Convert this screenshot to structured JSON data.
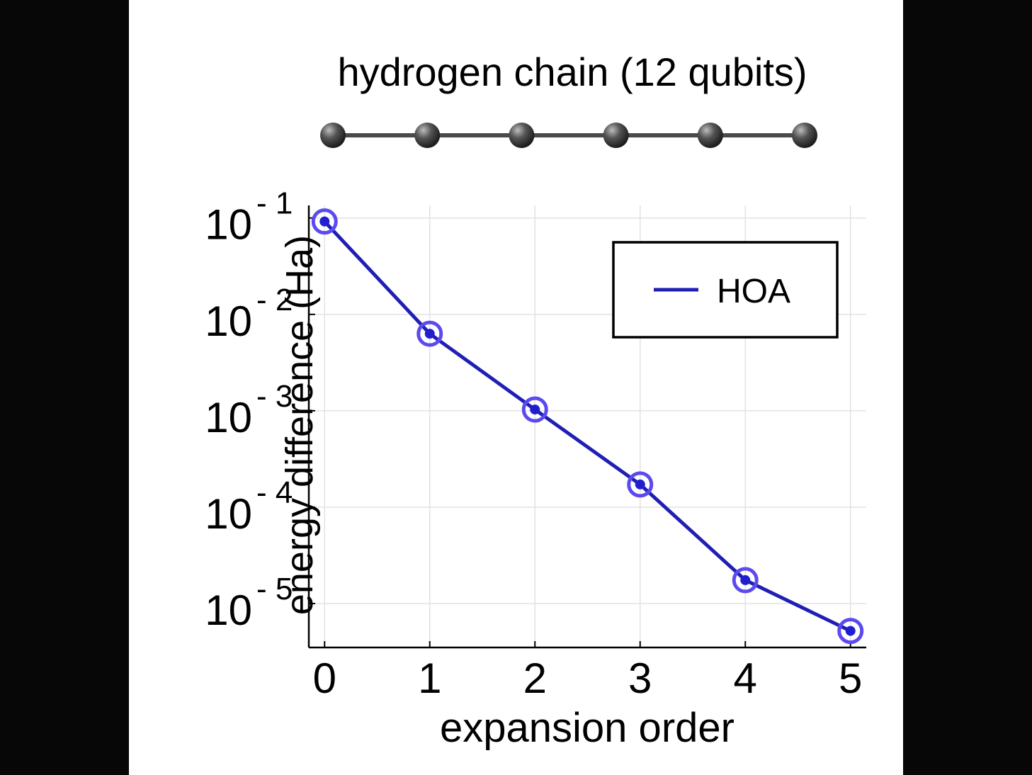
{
  "colors": {
    "background": "#ffffff",
    "side_panels": "#070707",
    "series_line": "#1f1fb4",
    "marker_ring": "#5b4af0",
    "marker_dot": "#1f1fd0",
    "atom": "#3a3a3a",
    "bond": "#4a4a4a",
    "grid": "#e2e2e2",
    "axis": "#000000"
  },
  "molecule": {
    "title": "hydrogen chain (12 qubits)",
    "atom_count": 6
  },
  "chart_data": {
    "type": "line",
    "title": "",
    "xlabel": "expansion order",
    "ylabel": "energy difference (Ha)",
    "x": [
      0,
      1,
      2,
      3,
      4,
      5
    ],
    "xticks": [
      "0",
      "1",
      "2",
      "3",
      "4",
      "5"
    ],
    "xlim": [
      -0.15,
      5.15
    ],
    "yscale": "log",
    "ylim": [
      3.5e-06,
      0.135
    ],
    "yticks": [
      {
        "value": 0.1,
        "base": "10",
        "exp": "- 1"
      },
      {
        "value": 0.01,
        "base": "10",
        "exp": "- 2"
      },
      {
        "value": 0.001,
        "base": "10",
        "exp": "- 3"
      },
      {
        "value": 0.0001,
        "base": "10",
        "exp": "- 4"
      },
      {
        "value": 1e-05,
        "base": "10",
        "exp": "- 5"
      }
    ],
    "grid": true,
    "legend_position": "top-right",
    "series": [
      {
        "name": "HOA",
        "values": [
          0.092,
          0.0063,
          0.00103,
          0.000172,
          1.75e-05,
          5.2e-06
        ]
      }
    ]
  }
}
